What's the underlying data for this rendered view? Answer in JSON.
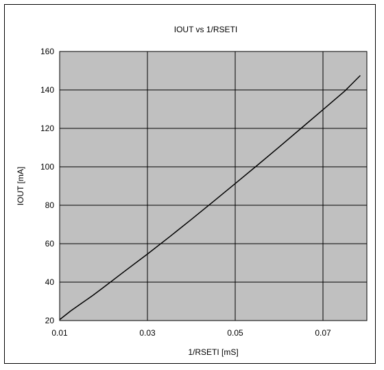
{
  "chart_data": {
    "type": "line",
    "title": "IOUT vs 1/RSETI",
    "xlabel": "1/RSETI [mS]",
    "ylabel": "IOUT [mA]",
    "xlim": [
      0.01,
      0.08
    ],
    "ylim": [
      20,
      160
    ],
    "x_ticks": [
      "0.01",
      "0.03",
      "0.05",
      "0.07"
    ],
    "x_tick_values": [
      0.01,
      0.03,
      0.05,
      0.07
    ],
    "y_ticks": [
      "20",
      "40",
      "60",
      "80",
      "100",
      "120",
      "140",
      "160"
    ],
    "y_tick_values": [
      20,
      40,
      60,
      80,
      100,
      120,
      140,
      160
    ],
    "grid": true,
    "plot_background": "#c0c0c0",
    "series": [
      {
        "x": [
          0.01,
          0.0125,
          0.015,
          0.0175,
          0.02,
          0.025,
          0.03,
          0.035,
          0.04,
          0.045,
          0.05,
          0.055,
          0.06,
          0.065,
          0.07,
          0.075,
          0.0785
        ],
        "y": [
          20.5,
          25.0,
          29.0,
          33.0,
          37.3,
          46.0,
          54.6,
          63.5,
          72.6,
          81.9,
          91.3,
          100.7,
          110.3,
          120.0,
          129.7,
          139.5,
          147.5
        ],
        "color": "#000000"
      }
    ]
  }
}
